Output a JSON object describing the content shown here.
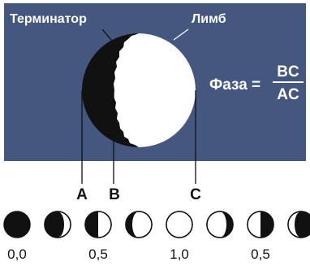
{
  "labels": {
    "terminator": "Терминатор",
    "limb": "Лимб",
    "point_a": "A",
    "point_b": "B",
    "point_c": "C"
  },
  "formula": {
    "lhs": "Фаза =",
    "numerator": "BC",
    "denominator": "AC"
  },
  "phase_scale": [
    "0,0",
    "0,5",
    "1,0",
    "0,5"
  ],
  "phase_sequence": [
    0.0,
    0.25,
    0.5,
    0.75,
    1.0,
    0.75,
    0.5,
    0.25,
    0.0
  ],
  "colors": {
    "panel": "#44577e",
    "dark": "#111111",
    "light": "#ffffff",
    "line": "#111111"
  }
}
